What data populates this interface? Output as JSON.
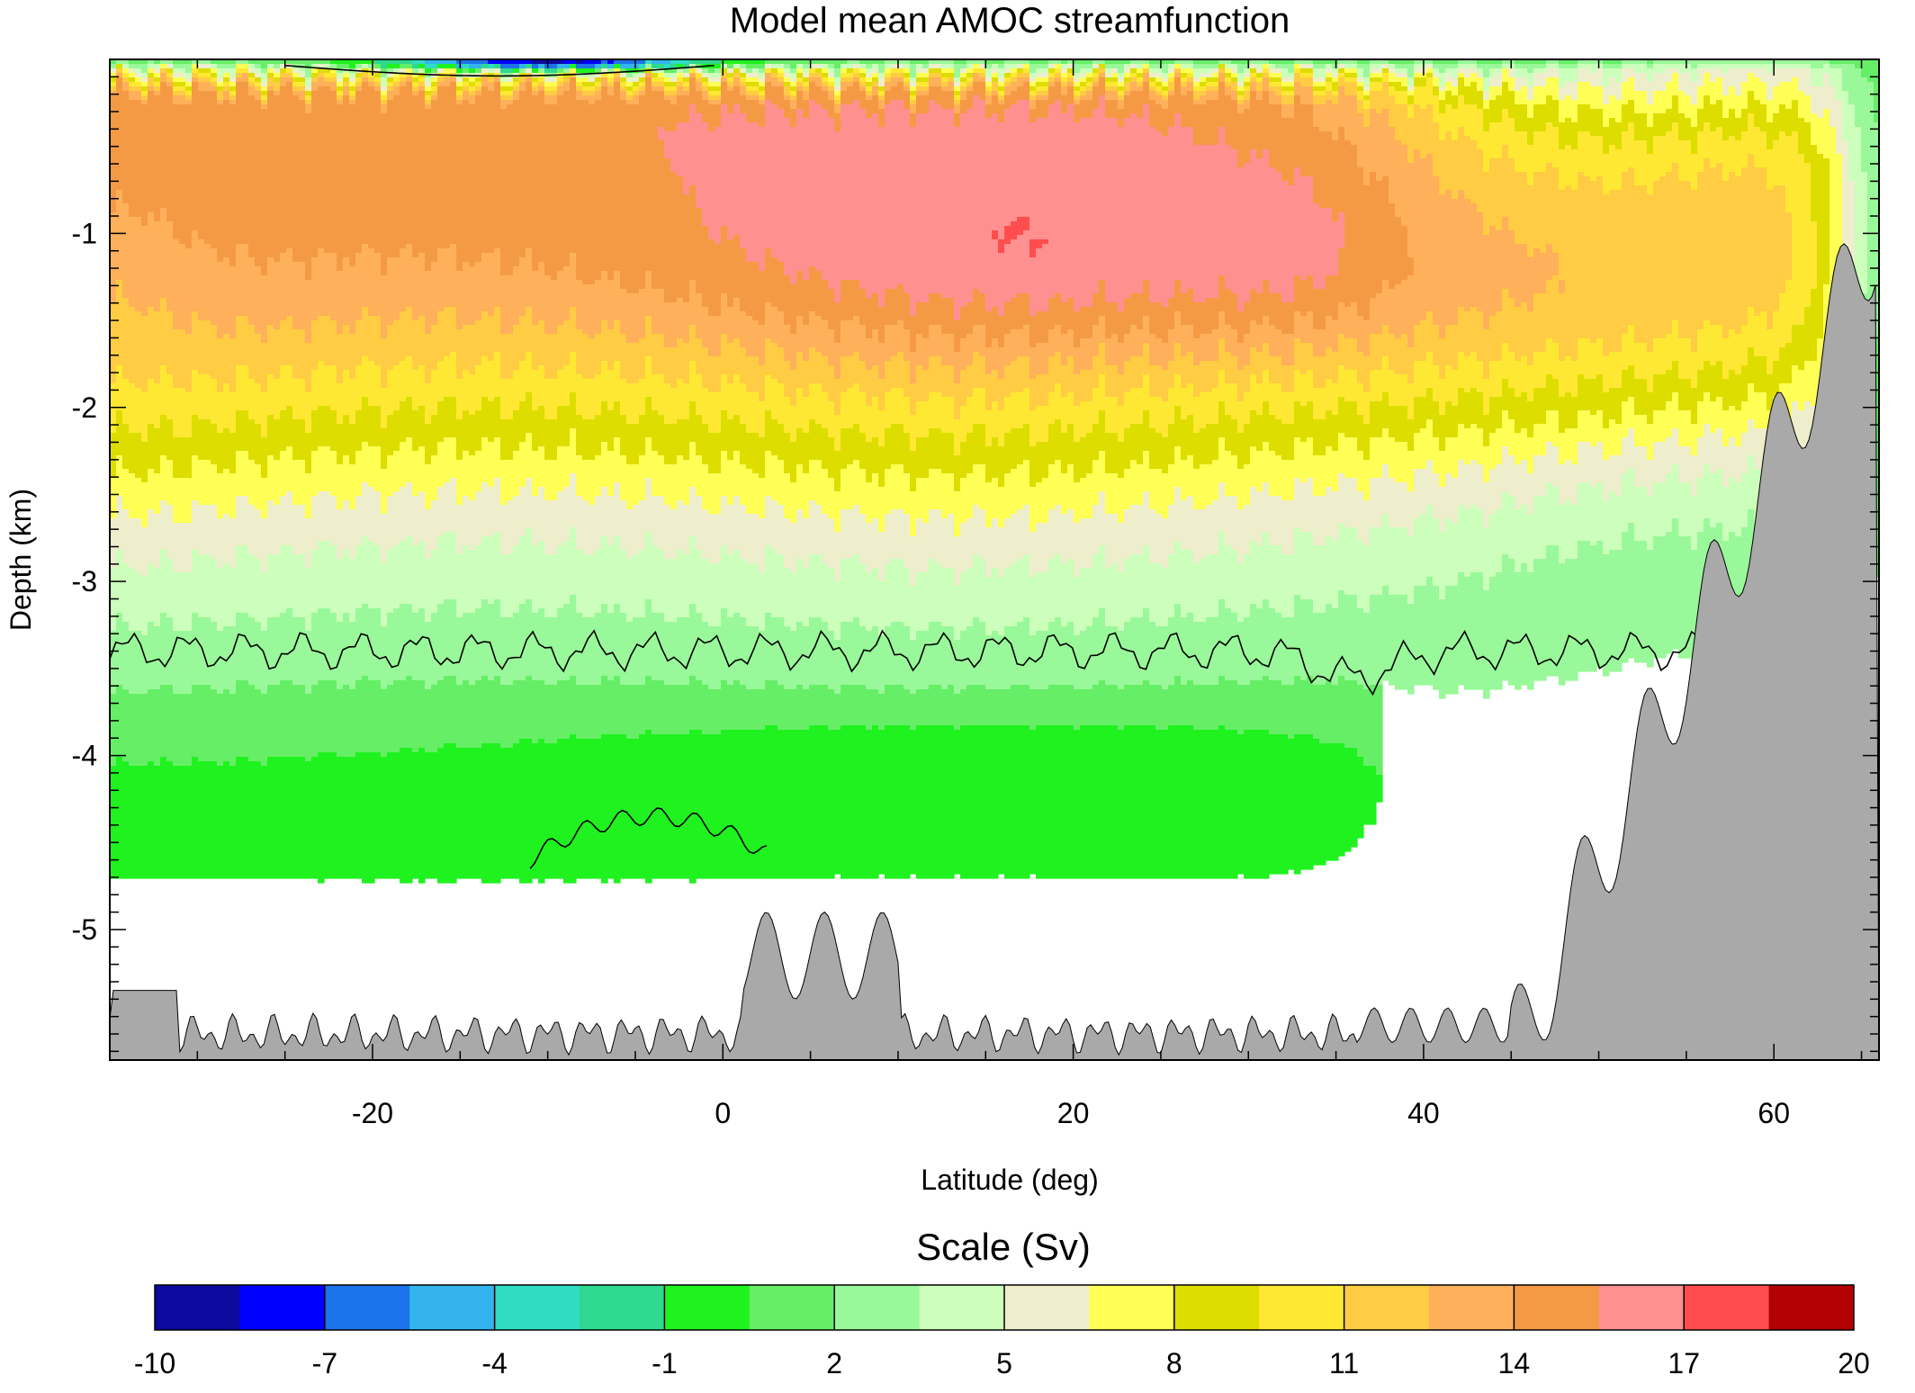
{
  "chart_data": {
    "type": "heatmap",
    "title": "Model mean AMOC streamfunction",
    "xlabel": "Latitude (deg)",
    "ylabel": "Depth (km)",
    "xlim": [
      -35,
      66
    ],
    "ylim": [
      -5.75,
      0.0
    ],
    "x_ticks": [
      -20,
      0,
      20,
      40,
      60
    ],
    "y_ticks": [
      -1,
      -2,
      -3,
      -4,
      -5
    ],
    "x_minor_step": 5,
    "y_minor_step": 0.1,
    "zero_contour_drawn": true,
    "land_mask_color": "#a9a9a9",
    "grid": false,
    "colorbar": {
      "title": "Scale (Sv)",
      "placement": "bottom",
      "vmin": -10,
      "vmax": 20,
      "tick_labels": [
        "-10",
        "-7",
        "-4",
        "-1",
        "2",
        "5",
        "8",
        "11",
        "14",
        "17",
        "20"
      ],
      "colors": [
        "#0a0a9e",
        "#0000ff",
        "#1c73ea",
        "#33b4ee",
        "#2fdcc4",
        "#2fd98f",
        "#1ff21f",
        "#66ee66",
        "#99f899",
        "#ccffbb",
        "#eeeecc",
        "#ffff55",
        "#dddd00",
        "#ffe833",
        "#ffcc44",
        "#ffb05a",
        "#f59a44",
        "#ff9090",
        "#ff4d4d",
        "#b30000"
      ]
    },
    "features": [
      {
        "desc": "upper cell maximum",
        "lat": [
          0,
          36
        ],
        "depth": -1.0,
        "value": 19
      },
      {
        "desc": "lower cell minimum",
        "lat": [
          -35,
          35
        ],
        "depth": -4.3,
        "value": -3
      }
    ]
  }
}
